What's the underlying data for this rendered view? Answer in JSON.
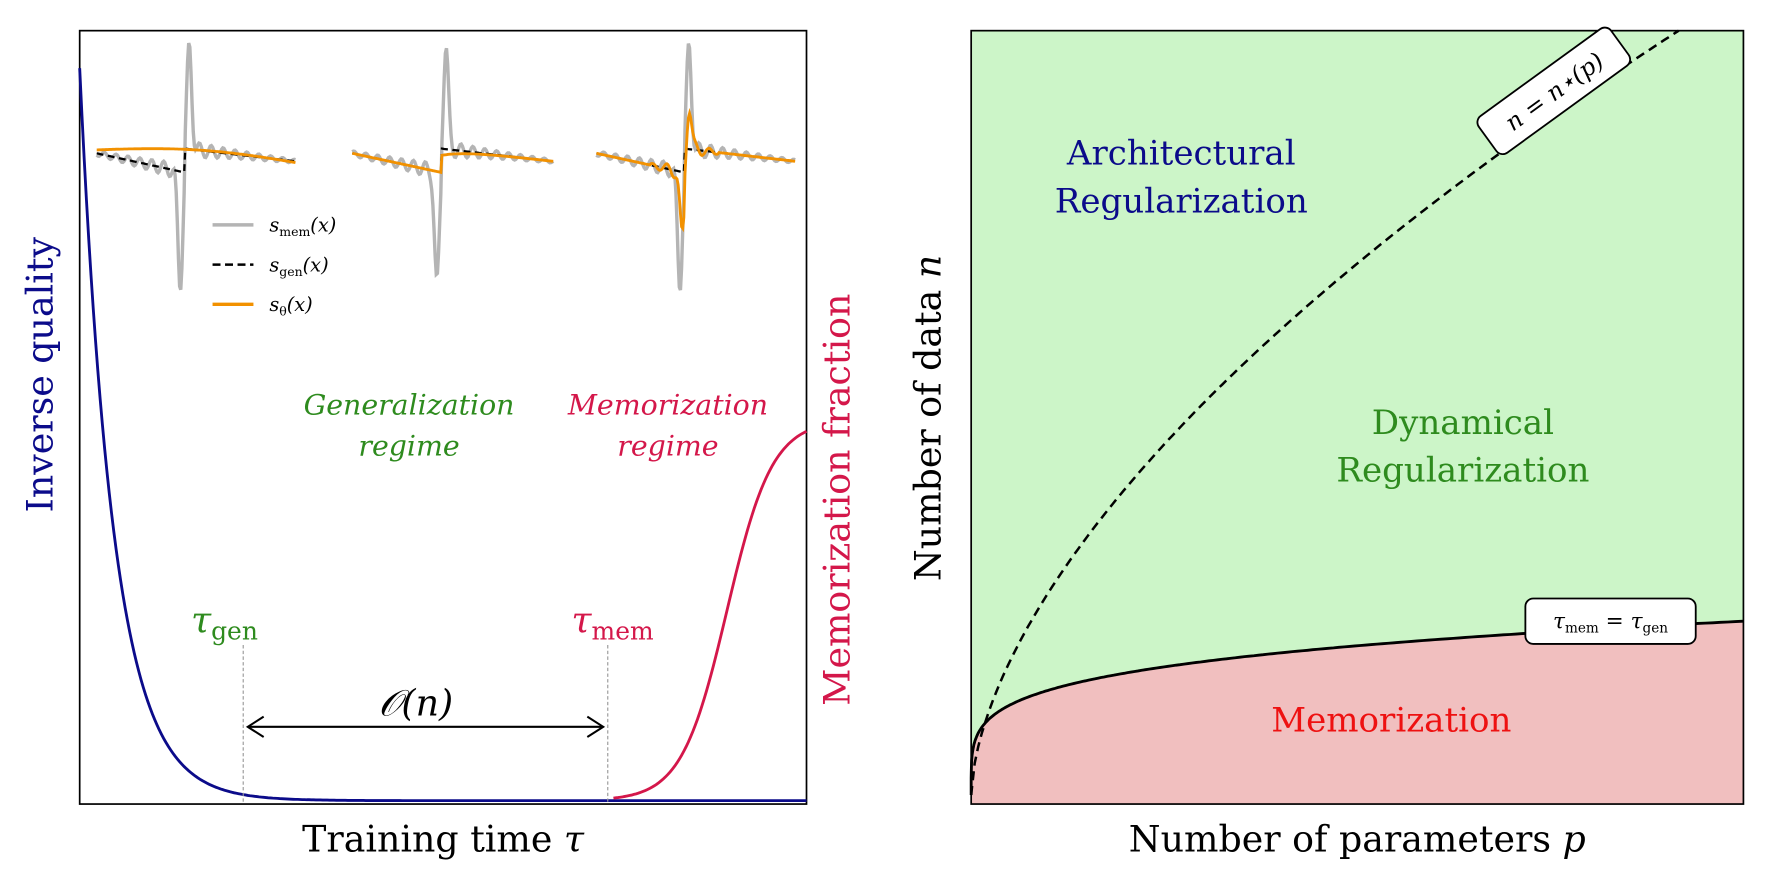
{
  "left_panel": {
    "xlabel_text": "Training time ",
    "xlabel_symbol": "τ",
    "ylabel_left": "Inverse quality",
    "ylabel_right": "Memorization fraction",
    "gen_regime": [
      "Generalization",
      "regime"
    ],
    "mem_regime": [
      "Memorization",
      "regime"
    ],
    "tau_gen": {
      "symbol": "τ",
      "sub": "gen"
    },
    "tau_mem": {
      "symbol": "τ",
      "sub": "mem"
    },
    "interval_label": "𝒪(n)",
    "legend": [
      {
        "sym": "s",
        "sub": "mem",
        "arg": "(x)"
      },
      {
        "sym": "s",
        "sub": "gen",
        "arg": "(x)"
      },
      {
        "sym": "s",
        "sub": "θ",
        "arg": "(x)"
      }
    ]
  },
  "right_panel": {
    "xlabel_text": "Number of parameters ",
    "xlabel_symbol": "p",
    "ylabel_text": "Number of data ",
    "ylabel_symbol": "n",
    "arch_label": [
      "Architectural",
      "Regularization"
    ],
    "dyn_label": [
      "Dynamical",
      "Regularization"
    ],
    "mem_label": "Memorization",
    "dashed_box": "n = n⋆(p)",
    "solid_box": {
      "lhs": "τ",
      "lhs_sub": "mem",
      "eq": " = ",
      "rhs": "τ",
      "rhs_sub": "gen"
    }
  },
  "colors": {
    "blue": "#0b0b8a",
    "red": "#d4174a",
    "green_text": "#2e8b1e",
    "green_fill": "#ccf5c8",
    "red_fill": "#f1bfbf",
    "memorization_text": "#ee1111",
    "orange": "#f29100",
    "gray": "#b4b4b4"
  }
}
